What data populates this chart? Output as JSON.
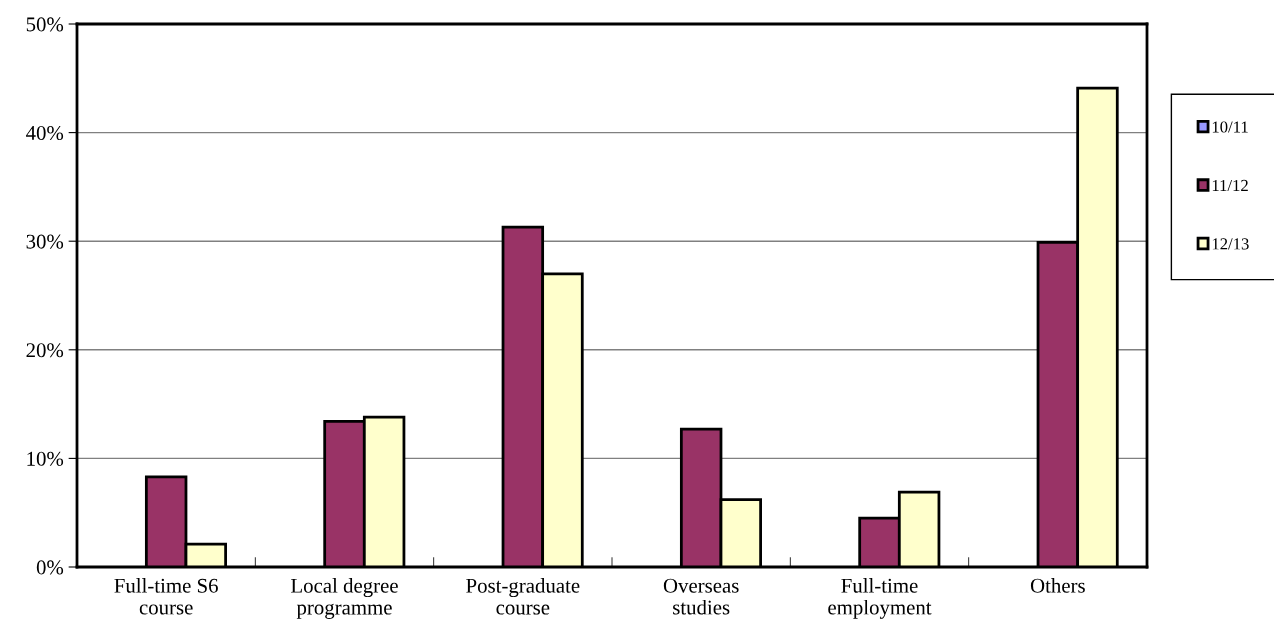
{
  "chart_data": {
    "type": "bar",
    "categories": [
      "Full-time S6\ncourse",
      "Local degree\nprogramme",
      "Post-graduate\ncourse",
      "Overseas\nstudies",
      "Full-time\nemployment",
      "Others"
    ],
    "series": [
      {
        "name": "10/11",
        "color": "#9999ff",
        "values": [
          null,
          null,
          null,
          null,
          null,
          null
        ]
      },
      {
        "name": "11/12",
        "color": "#993366",
        "values": [
          8.3,
          13.4,
          31.3,
          12.7,
          4.5,
          29.9
        ]
      },
      {
        "name": "12/13",
        "color": "#ffffcc",
        "values": [
          2.1,
          13.8,
          27.0,
          6.2,
          6.9,
          44.1
        ]
      }
    ],
    "ylim": [
      0,
      50
    ],
    "yticks": [
      {
        "value": 0,
        "label": "0%"
      },
      {
        "value": 10,
        "label": "10%"
      },
      {
        "value": 20,
        "label": "20%"
      },
      {
        "value": 30,
        "label": "30%"
      },
      {
        "value": 40,
        "label": "40%"
      },
      {
        "value": 50,
        "label": "50%"
      }
    ],
    "grid": "y",
    "legend": "right"
  }
}
